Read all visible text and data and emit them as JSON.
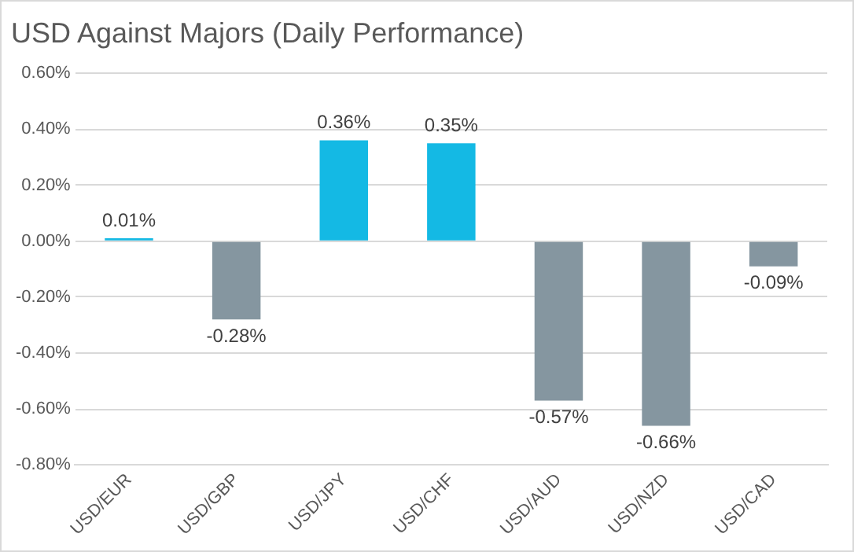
{
  "chart_data": {
    "type": "bar",
    "title": "USD Against Majors (Daily Performance)",
    "categories": [
      "USD/EUR",
      "USD/GBP",
      "USD/JPY",
      "USD/CHF",
      "USD/AUD",
      "USD/NZD",
      "USD/CAD"
    ],
    "values": [
      0.01,
      -0.28,
      0.36,
      0.35,
      -0.57,
      -0.66,
      -0.09
    ],
    "colors": [
      "#14b9e4",
      "#8596a0",
      "#14b9e4",
      "#14b9e4",
      "#8596a0",
      "#8596a0",
      "#8596a0"
    ],
    "value_labels": [
      "0.01%",
      "-0.28%",
      "0.36%",
      "0.35%",
      "-0.57%",
      "-0.66%",
      "-0.09%"
    ],
    "ylim": [
      -0.8,
      0.6
    ],
    "yticks": [
      {
        "value": -0.8,
        "label": "-0.80%"
      },
      {
        "value": -0.6,
        "label": "-0.60%"
      },
      {
        "value": -0.4,
        "label": "-0.40%"
      },
      {
        "value": -0.2,
        "label": "-0.20%"
      },
      {
        "value": 0,
        "label": "0.00%"
      },
      {
        "value": 0.2,
        "label": "0.20%"
      },
      {
        "value": 0.4,
        "label": "0.40%"
      },
      {
        "value": 0.6,
        "label": "0.60%"
      }
    ],
    "grid": "y",
    "legend": false
  }
}
